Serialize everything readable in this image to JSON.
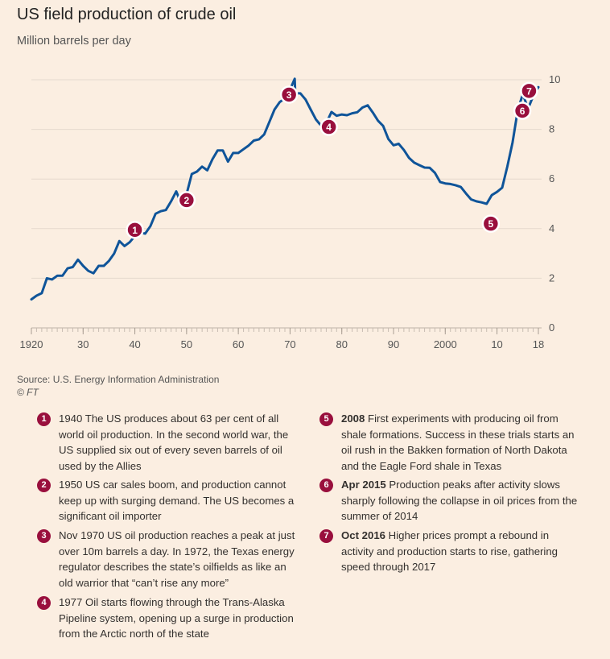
{
  "title": "US field production of crude oil",
  "subtitle": "Million barrels per day",
  "source_line": "Source: U.S. Energy Information Administration",
  "credit": "© FT",
  "colors": {
    "line": "#0f5499",
    "marker": "#990f3d",
    "background": "#fbeee1"
  },
  "chart_data": {
    "type": "line",
    "title": "US field production of crude oil",
    "ylabel": "Million barrels per day",
    "xlim": [
      1920,
      2018
    ],
    "ylim": [
      0,
      10
    ],
    "y_ticks": [
      0,
      2,
      4,
      6,
      8,
      10
    ],
    "x_ticks": [
      {
        "value": 1920,
        "label": "1920"
      },
      {
        "value": 1930,
        "label": "30"
      },
      {
        "value": 1940,
        "label": "40"
      },
      {
        "value": 1950,
        "label": "50"
      },
      {
        "value": 1960,
        "label": "60"
      },
      {
        "value": 1970,
        "label": "70"
      },
      {
        "value": 1980,
        "label": "80"
      },
      {
        "value": 1990,
        "label": "90"
      },
      {
        "value": 2000,
        "label": "2000"
      },
      {
        "value": 2010,
        "label": "10"
      },
      {
        "value": 2018,
        "label": "18"
      }
    ],
    "series": [
      {
        "name": "US field production of crude oil",
        "points": [
          [
            1920,
            1.15
          ],
          [
            1921,
            1.3
          ],
          [
            1922,
            1.4
          ],
          [
            1923,
            2.0
          ],
          [
            1924,
            1.95
          ],
          [
            1925,
            2.1
          ],
          [
            1926,
            2.1
          ],
          [
            1927,
            2.4
          ],
          [
            1928,
            2.45
          ],
          [
            1929,
            2.75
          ],
          [
            1930,
            2.5
          ],
          [
            1931,
            2.3
          ],
          [
            1932,
            2.2
          ],
          [
            1933,
            2.5
          ],
          [
            1934,
            2.5
          ],
          [
            1935,
            2.7
          ],
          [
            1936,
            3.0
          ],
          [
            1937,
            3.5
          ],
          [
            1938,
            3.3
          ],
          [
            1939,
            3.45
          ],
          [
            1940,
            3.7
          ],
          [
            1941,
            3.85
          ],
          [
            1942,
            3.8
          ],
          [
            1943,
            4.1
          ],
          [
            1944,
            4.6
          ],
          [
            1945,
            4.7
          ],
          [
            1946,
            4.75
          ],
          [
            1947,
            5.1
          ],
          [
            1948,
            5.5
          ],
          [
            1949,
            5.0
          ],
          [
            1950,
            5.4
          ],
          [
            1951,
            6.2
          ],
          [
            1952,
            6.3
          ],
          [
            1953,
            6.5
          ],
          [
            1954,
            6.35
          ],
          [
            1955,
            6.8
          ],
          [
            1956,
            7.15
          ],
          [
            1957,
            7.15
          ],
          [
            1958,
            6.7
          ],
          [
            1959,
            7.05
          ],
          [
            1960,
            7.05
          ],
          [
            1961,
            7.2
          ],
          [
            1962,
            7.35
          ],
          [
            1963,
            7.55
          ],
          [
            1964,
            7.6
          ],
          [
            1965,
            7.8
          ],
          [
            1966,
            8.3
          ],
          [
            1967,
            8.8
          ],
          [
            1968,
            9.1
          ],
          [
            1969,
            9.25
          ],
          [
            1970,
            9.6
          ],
          [
            1970.9,
            10.04
          ],
          [
            1971,
            9.45
          ],
          [
            1972,
            9.45
          ],
          [
            1973,
            9.2
          ],
          [
            1974,
            8.8
          ],
          [
            1975,
            8.4
          ],
          [
            1976,
            8.15
          ],
          [
            1977,
            8.25
          ],
          [
            1978,
            8.7
          ],
          [
            1979,
            8.55
          ],
          [
            1980,
            8.6
          ],
          [
            1981,
            8.57
          ],
          [
            1982,
            8.65
          ],
          [
            1983,
            8.69
          ],
          [
            1984,
            8.88
          ],
          [
            1985,
            8.97
          ],
          [
            1986,
            8.68
          ],
          [
            1987,
            8.35
          ],
          [
            1988,
            8.14
          ],
          [
            1989,
            7.61
          ],
          [
            1990,
            7.36
          ],
          [
            1991,
            7.42
          ],
          [
            1992,
            7.17
          ],
          [
            1993,
            6.85
          ],
          [
            1994,
            6.66
          ],
          [
            1995,
            6.56
          ],
          [
            1996,
            6.46
          ],
          [
            1997,
            6.45
          ],
          [
            1998,
            6.25
          ],
          [
            1999,
            5.88
          ],
          [
            2000,
            5.82
          ],
          [
            2001,
            5.8
          ],
          [
            2002,
            5.75
          ],
          [
            2003,
            5.68
          ],
          [
            2004,
            5.42
          ],
          [
            2005,
            5.18
          ],
          [
            2006,
            5.1
          ],
          [
            2007,
            5.06
          ],
          [
            2008,
            5.0
          ],
          [
            2009,
            5.35
          ],
          [
            2010,
            5.48
          ],
          [
            2011,
            5.65
          ],
          [
            2012,
            6.5
          ],
          [
            2013,
            7.47
          ],
          [
            2014,
            8.76
          ],
          [
            2015,
            9.43
          ],
          [
            2016,
            8.83
          ],
          [
            2017,
            9.35
          ],
          [
            2018,
            9.7
          ]
        ]
      }
    ],
    "annotations": [
      {
        "n": "1",
        "x": 1940,
        "y": 3.95
      },
      {
        "n": "2",
        "x": 1950,
        "y": 5.15
      },
      {
        "n": "3",
        "x": 1969.8,
        "y": 9.4
      },
      {
        "n": "4",
        "x": 1977.5,
        "y": 8.1
      },
      {
        "n": "5",
        "x": 2008.8,
        "y": 4.2
      },
      {
        "n": "6",
        "x": 2014.9,
        "y": 8.75
      },
      {
        "n": "7",
        "x": 2016.2,
        "y": 9.55
      }
    ]
  },
  "notes": [
    {
      "n": "1",
      "lead": "",
      "text": "1940 The US produces about 63 per cent of all world oil production. In the second world war, the US supplied six out of every seven barrels of oil used by the Allies"
    },
    {
      "n": "2",
      "lead": "",
      "text": "1950 US car sales boom, and production cannot keep up with surging demand. The US becomes a significant oil importer"
    },
    {
      "n": "3",
      "lead": "",
      "text": "Nov 1970 US oil production reaches a peak at just over 10m barrels a day. In 1972, the Texas energy regulator describes the state’s oilfields as like an old warrior that “can’t rise any more”"
    },
    {
      "n": "4",
      "lead": "",
      "text": "1977 Oil starts flowing through the Trans-Alaska Pipeline system, opening up a surge in production from the Arctic north of the state"
    },
    {
      "n": "5",
      "lead": "2008",
      "text": "First experiments with producing oil from shale formations. Success in these trials starts an oil rush in the Bakken formation of North Dakota and the Eagle Ford shale in Texas"
    },
    {
      "n": "6",
      "lead": "Apr 2015",
      "text": "Production peaks after activity slows sharply following the collapse in oil prices from the summer of 2014"
    },
    {
      "n": "7",
      "lead": "Oct 2016",
      "text": "Higher prices prompt a rebound in activity and production starts to rise, gathering speed through 2017"
    }
  ]
}
